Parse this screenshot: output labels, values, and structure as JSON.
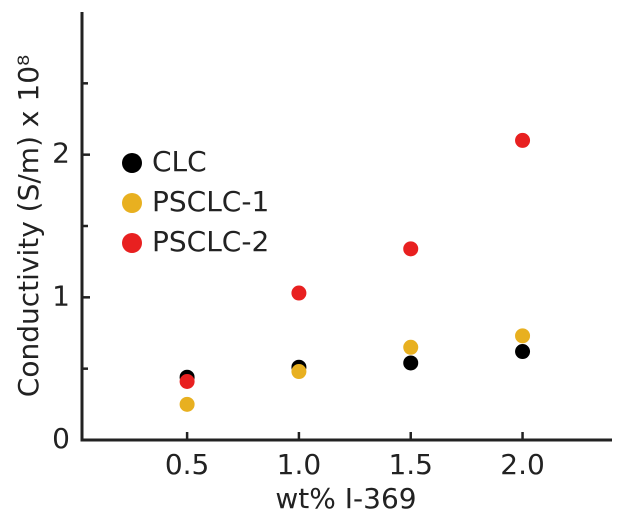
{
  "chart_data": {
    "type": "scatter",
    "x_label": "wt% I-369",
    "y_label": "Conductivity (S/m) x 10⁸",
    "xlim": [
      0.03,
      2.4
    ],
    "ylim": [
      0,
      3
    ],
    "xticks": [
      {
        "value": 0.5,
        "label": "0.5"
      },
      {
        "value": 1,
        "label": "1.0"
      },
      {
        "value": 1.5,
        "label": "1.5"
      },
      {
        "value": 2,
        "label": "2.0"
      }
    ],
    "yticks": [
      0,
      1,
      2
    ],
    "yminorticks": [
      0.5,
      1.5,
      2.5
    ],
    "legend": "left",
    "series": [
      {
        "name": "CLC",
        "color": "#000000",
        "x": [
          0.5,
          1,
          1.5,
          2
        ],
        "values": [
          0.44,
          0.51,
          0.54,
          0.62
        ]
      },
      {
        "name": "PSCLC-1",
        "color": "#e8b020",
        "x": [
          0.5,
          1,
          1.5,
          2
        ],
        "values": [
          0.25,
          0.48,
          0.65,
          0.73
        ]
      },
      {
        "name": "PSCLC-2",
        "color": "#e82020",
        "x": [
          0.5,
          1,
          1.5,
          2
        ],
        "values": [
          0.41,
          1.03,
          1.34,
          2.1
        ]
      }
    ]
  }
}
